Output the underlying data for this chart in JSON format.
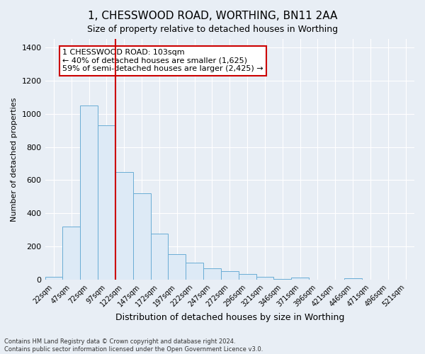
{
  "title": "1, CHESSWOOD ROAD, WORTHING, BN11 2AA",
  "subtitle": "Size of property relative to detached houses in Worthing",
  "xlabel": "Distribution of detached houses by size in Worthing",
  "ylabel": "Number of detached properties",
  "bar_color": "#ddeaf6",
  "bar_edge_color": "#6aadd5",
  "categories": [
    "22sqm",
    "47sqm",
    "72sqm",
    "97sqm",
    "122sqm",
    "147sqm",
    "172sqm",
    "197sqm",
    "222sqm",
    "247sqm",
    "272sqm",
    "296sqm",
    "321sqm",
    "346sqm",
    "371sqm",
    "396sqm",
    "421sqm",
    "446sqm",
    "471sqm",
    "496sqm",
    "521sqm"
  ],
  "values": [
    20,
    320,
    1050,
    930,
    650,
    520,
    280,
    155,
    105,
    70,
    50,
    35,
    20,
    5,
    15,
    0,
    0,
    10,
    0,
    0,
    0
  ],
  "ylim": [
    0,
    1450
  ],
  "yticks": [
    0,
    200,
    400,
    600,
    800,
    1000,
    1200,
    1400
  ],
  "property_bar_index": 3,
  "vline_color": "#cc0000",
  "annotation_text": "1 CHESSWOOD ROAD: 103sqm\n← 40% of detached houses are smaller (1,625)\n59% of semi-detached houses are larger (2,425) →",
  "annotation_box_color": "#ffffff",
  "annotation_box_edge": "#cc0000",
  "footer_line1": "Contains HM Land Registry data © Crown copyright and database right 2024.",
  "footer_line2": "Contains public sector information licensed under the Open Government Licence v3.0.",
  "background_color": "#e8eef5",
  "plot_background": "#e8eef5",
  "grid_color": "#ffffff"
}
